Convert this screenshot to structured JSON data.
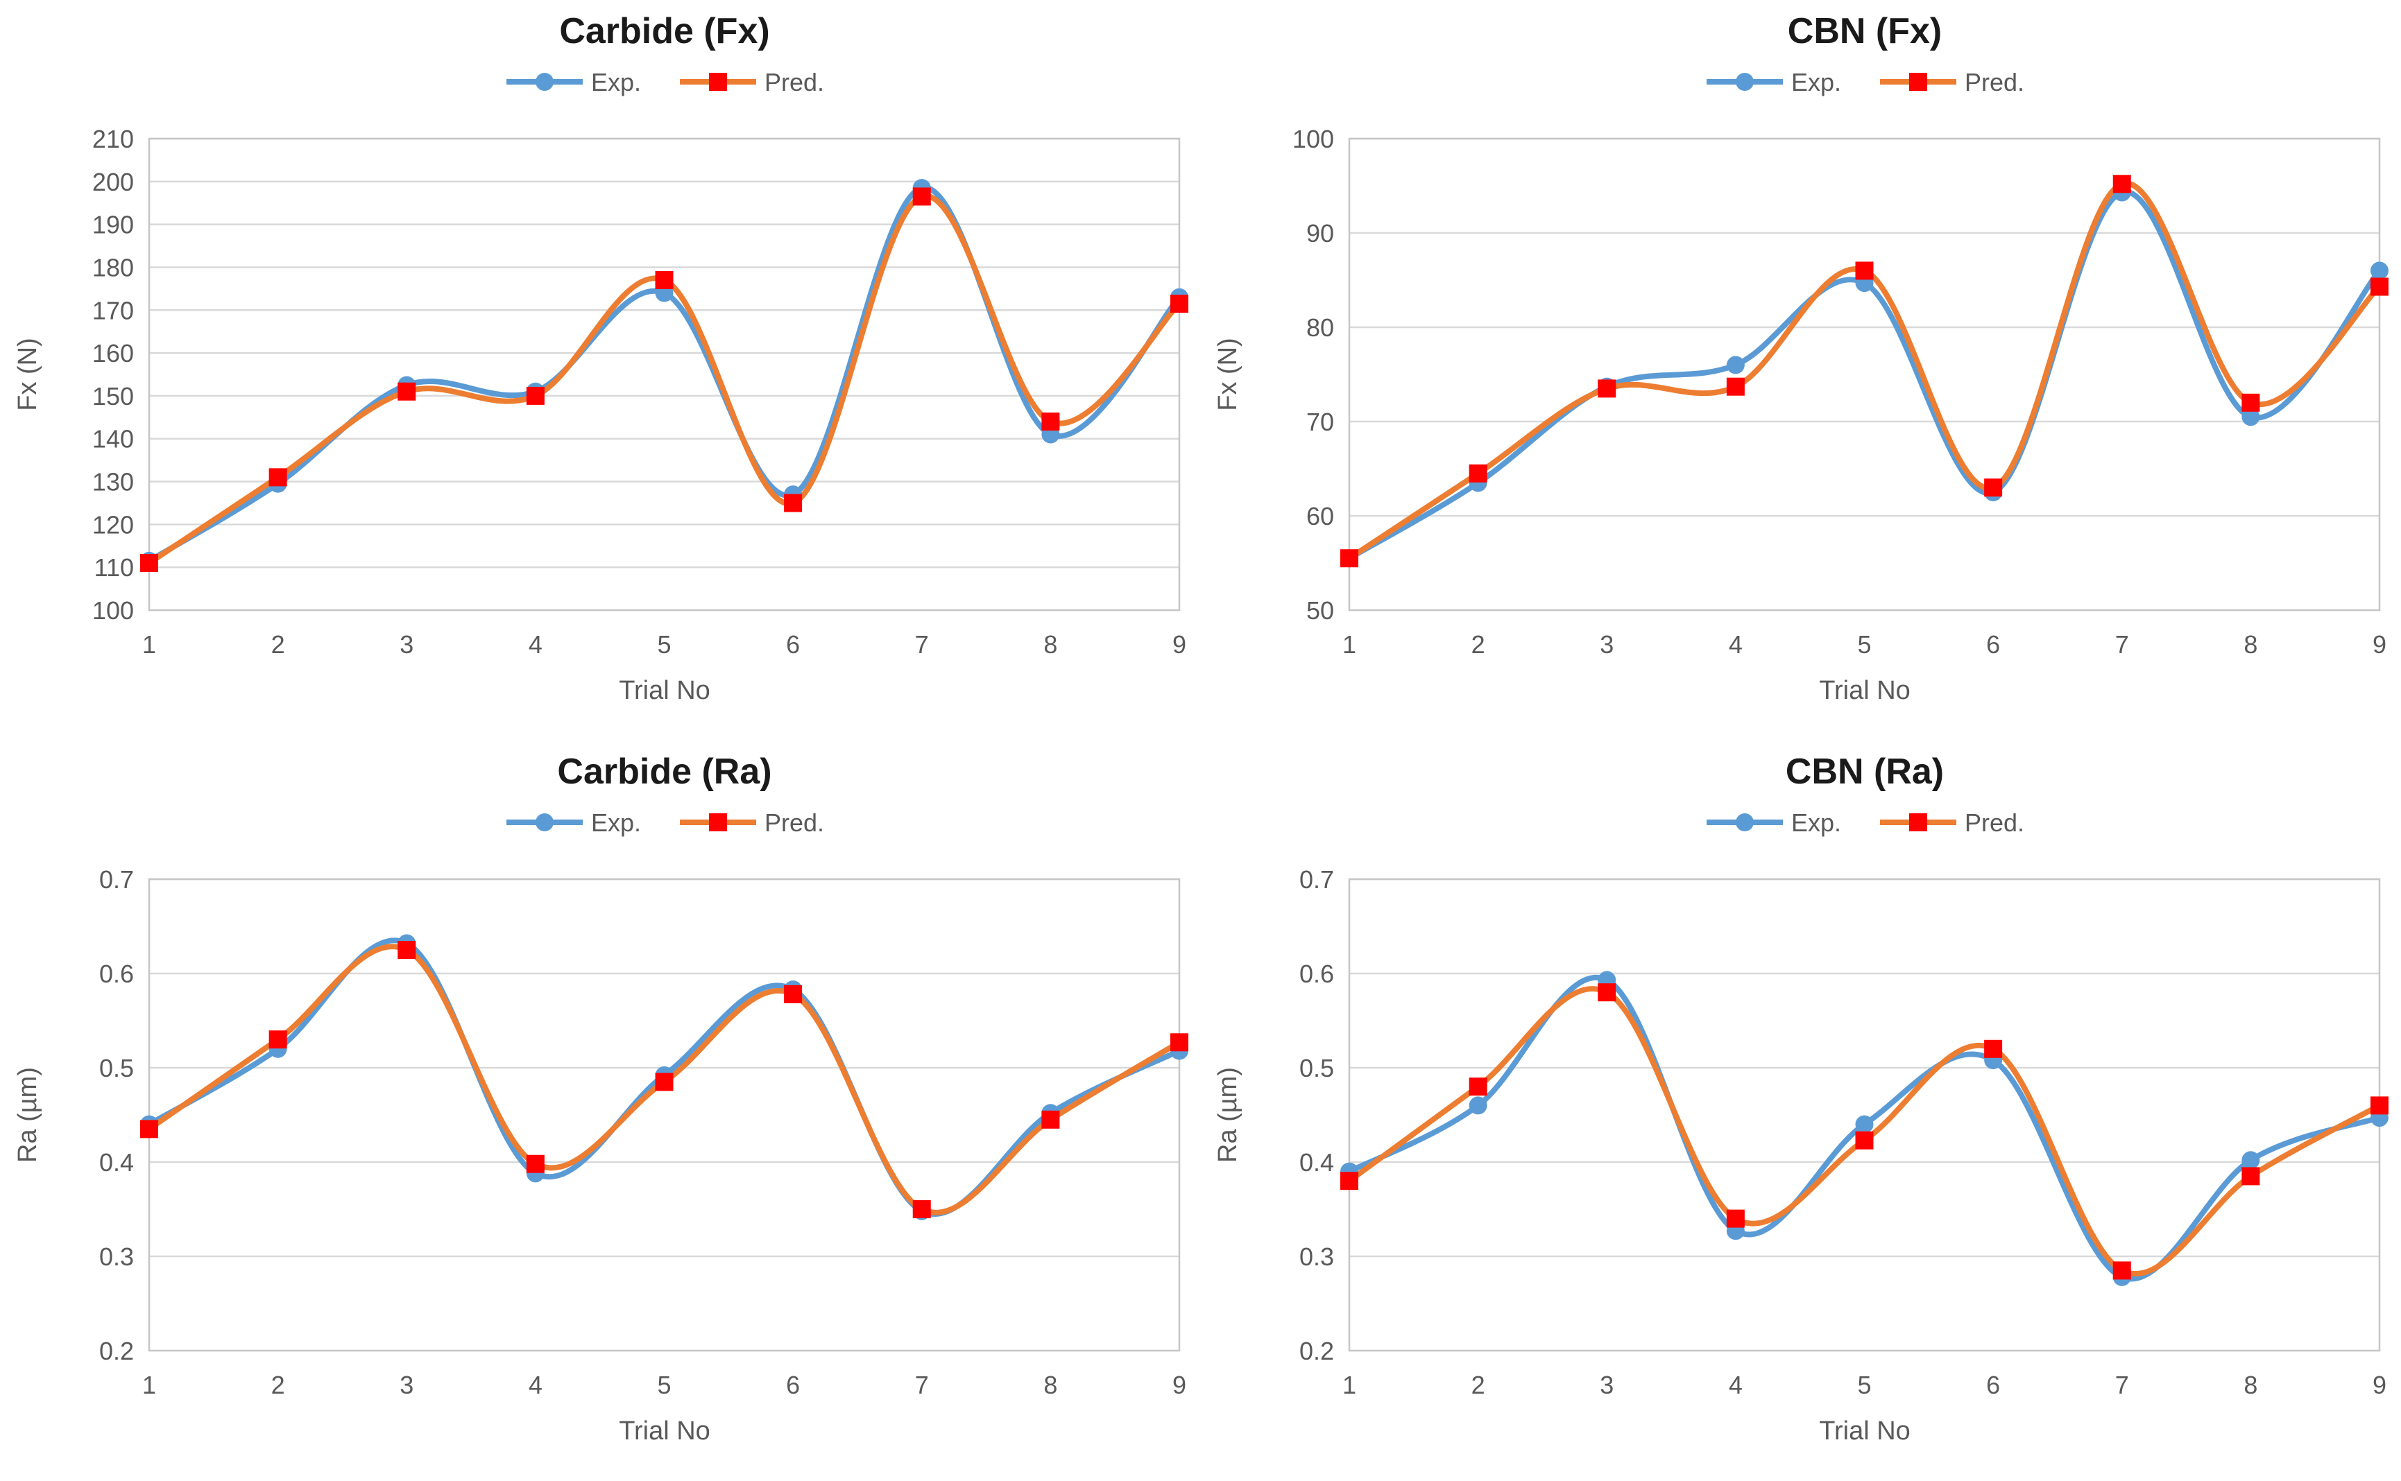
{
  "styles": {
    "background": "#ffffff",
    "title_color": "#1a1a1a",
    "axis_text_color": "#595959",
    "grid_color": "#d9d9d9",
    "border_color": "#c6c6c6",
    "exp_color": "#5b9bd5",
    "pred_line_color": "#ed7d31",
    "pred_marker_color": "#ff0000"
  },
  "chart_data": [
    {
      "id": "carbide-fx",
      "type": "line",
      "title": "Carbide (Fx)",
      "xlabel": "Trial No",
      "ylabel": "Fx (N)",
      "categories": [
        "1",
        "2",
        "3",
        "4",
        "5",
        "6",
        "7",
        "8",
        "9"
      ],
      "ylim": [
        100,
        210
      ],
      "ytick_step": 10,
      "grid": true,
      "legend_position": "top",
      "smooth": true,
      "series": [
        {
          "name": "Exp.",
          "marker": "circle",
          "color": "#5b9bd5",
          "marker_color": "#5b9bd5",
          "values": [
            111.5,
            129.5,
            152.5,
            151,
            174,
            127,
            198.5,
            141,
            173
          ]
        },
        {
          "name": "Pred.",
          "marker": "square",
          "color": "#ed7d31",
          "marker_color": "#ff0000",
          "values": [
            111,
            131,
            151,
            150,
            177,
            125,
            196.5,
            144,
            171.5
          ]
        }
      ]
    },
    {
      "id": "cbn-fx",
      "type": "line",
      "title": "CBN (Fx)",
      "xlabel": "Trial No",
      "ylabel": "Fx (N)",
      "categories": [
        "1",
        "2",
        "3",
        "4",
        "5",
        "6",
        "7",
        "8",
        "9"
      ],
      "ylim": [
        50,
        100
      ],
      "ytick_step": 10,
      "grid": true,
      "legend_position": "top",
      "smooth": true,
      "series": [
        {
          "name": "Exp.",
          "marker": "circle",
          "color": "#5b9bd5",
          "marker_color": "#5b9bd5",
          "values": [
            55.5,
            63.5,
            73.7,
            76,
            84.7,
            62.5,
            94.3,
            70.5,
            86
          ]
        },
        {
          "name": "Pred.",
          "marker": "square",
          "color": "#ed7d31",
          "marker_color": "#ff0000",
          "values": [
            55.5,
            64.5,
            73.5,
            73.7,
            86,
            63,
            95.2,
            72,
            84.3
          ]
        }
      ]
    },
    {
      "id": "carbide-ra",
      "type": "line",
      "title": "Carbide (Ra)",
      "xlabel": "Trial No",
      "ylabel": "Ra (µm)",
      "categories": [
        "1",
        "2",
        "3",
        "4",
        "5",
        "6",
        "7",
        "8",
        "9"
      ],
      "ylim": [
        0.2,
        0.7
      ],
      "ytick_step": 0.1,
      "grid": true,
      "legend_position": "top",
      "smooth": true,
      "series": [
        {
          "name": "Exp.",
          "marker": "circle",
          "color": "#5b9bd5",
          "marker_color": "#5b9bd5",
          "values": [
            0.44,
            0.52,
            0.632,
            0.388,
            0.492,
            0.583,
            0.348,
            0.452,
            0.518
          ]
        },
        {
          "name": "Pred.",
          "marker": "square",
          "color": "#ed7d31",
          "marker_color": "#ff0000",
          "values": [
            0.435,
            0.53,
            0.625,
            0.398,
            0.485,
            0.578,
            0.35,
            0.445,
            0.527
          ]
        }
      ]
    },
    {
      "id": "cbn-ra",
      "type": "line",
      "title": "CBN (Ra)",
      "xlabel": "Trial No",
      "ylabel": "Ra (µm)",
      "categories": [
        "1",
        "2",
        "3",
        "4",
        "5",
        "6",
        "7",
        "8",
        "9"
      ],
      "ylim": [
        0.2,
        0.7
      ],
      "ytick_step": 0.1,
      "grid": true,
      "legend_position": "top",
      "smooth": true,
      "series": [
        {
          "name": "Exp.",
          "marker": "circle",
          "color": "#5b9bd5",
          "marker_color": "#5b9bd5",
          "values": [
            0.39,
            0.46,
            0.593,
            0.327,
            0.44,
            0.508,
            0.278,
            0.402,
            0.447
          ]
        },
        {
          "name": "Pred.",
          "marker": "square",
          "color": "#ed7d31",
          "marker_color": "#ff0000",
          "values": [
            0.38,
            0.48,
            0.58,
            0.34,
            0.423,
            0.52,
            0.285,
            0.385,
            0.46
          ]
        }
      ]
    }
  ]
}
